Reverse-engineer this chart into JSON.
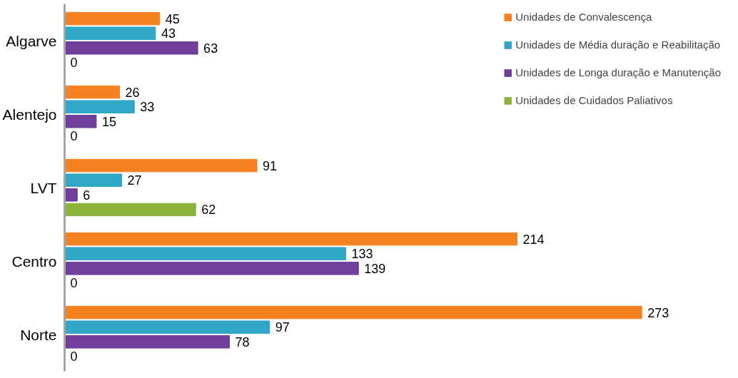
{
  "chart_data": {
    "type": "bar",
    "orientation": "horizontal",
    "categories": [
      "Algarve",
      "Alentejo",
      "LVT",
      "Centro",
      "Norte"
    ],
    "series": [
      {
        "name": "Unidades de Convalescença",
        "color": "#f58220",
        "values": [
          45,
          26,
          91,
          214,
          273
        ]
      },
      {
        "name": "Unidades de Média duração e Reabilitação",
        "color": "#31a7c7",
        "values": [
          43,
          33,
          27,
          133,
          97
        ]
      },
      {
        "name": "Unidades de Longa duração e Manutenção",
        "color": "#6f3f9b",
        "values": [
          63,
          15,
          6,
          139,
          78
        ]
      },
      {
        "name": "Unidades de Cuidados Paliativos",
        "color": "#8cb43c",
        "values": [
          0,
          0,
          62,
          0,
          0
        ]
      }
    ],
    "data_labels": true,
    "legend": "right",
    "grid": false
  }
}
